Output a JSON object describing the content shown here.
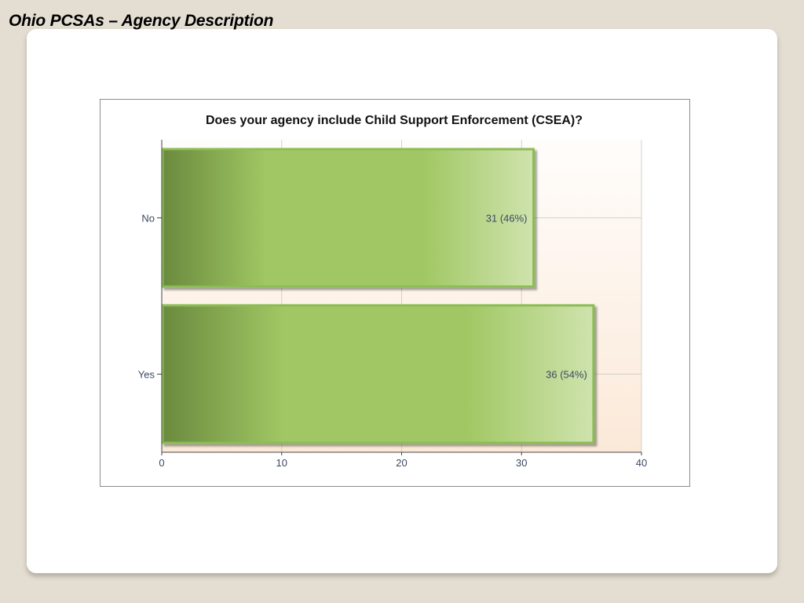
{
  "slide": {
    "title": "Ohio PCSAs – Agency Description"
  },
  "chart_data": {
    "type": "bar",
    "orientation": "horizontal",
    "title": "Does your agency include Child Support Enforcement (CSEA)?",
    "xlabel": "",
    "ylabel": "",
    "categories": [
      "No",
      "Yes"
    ],
    "values": [
      31,
      36
    ],
    "data_labels": [
      "31 (46%)",
      "36 (54%)"
    ],
    "xlim": [
      0,
      40
    ],
    "x_ticks": [
      "0",
      "10",
      "20",
      "30",
      "40"
    ],
    "grid": true,
    "legend": "none",
    "colors": {
      "bar_dark": "#6a8a3e",
      "bar_mid": "#a0c763",
      "bar_light": "#cfe3ad",
      "bar_border": "#8cbc55",
      "plot_bg_top": "#fffdfb",
      "plot_bg_bottom": "#fbe9d8",
      "grid": "#d4d0cb",
      "axis_label": "#3b4a63"
    }
  }
}
